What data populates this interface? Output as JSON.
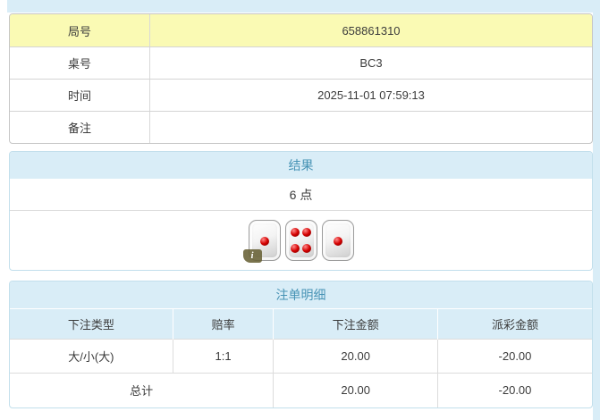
{
  "game_info": {
    "rows": [
      {
        "label": "局号",
        "value": "658861310"
      },
      {
        "label": "桌号",
        "value": "BC3"
      },
      {
        "label": "时间",
        "value": "2025-11-01 07:59:13"
      },
      {
        "label": "备注",
        "value": ""
      }
    ]
  },
  "result": {
    "title": "结果",
    "points": "6 点",
    "dice": [
      1,
      4,
      1
    ],
    "info_badge": "i"
  },
  "bets": {
    "title": "注单明细",
    "columns": [
      "下注类型",
      "赔率",
      "下注金额",
      "派彩金额"
    ],
    "rows": [
      {
        "type": "大/小(大)",
        "odds": "1:1",
        "bet_amount": "20.00",
        "payout": "-20.00"
      }
    ],
    "total": {
      "label": "总计",
      "bet_amount": "20.00",
      "payout": "-20.00"
    }
  },
  "colors": {
    "accent_blue_bg": "#d9edf7",
    "accent_blue_text": "#4793b5",
    "highlight_yellow": "#fafab4",
    "negative_red": "#e03b3b"
  }
}
